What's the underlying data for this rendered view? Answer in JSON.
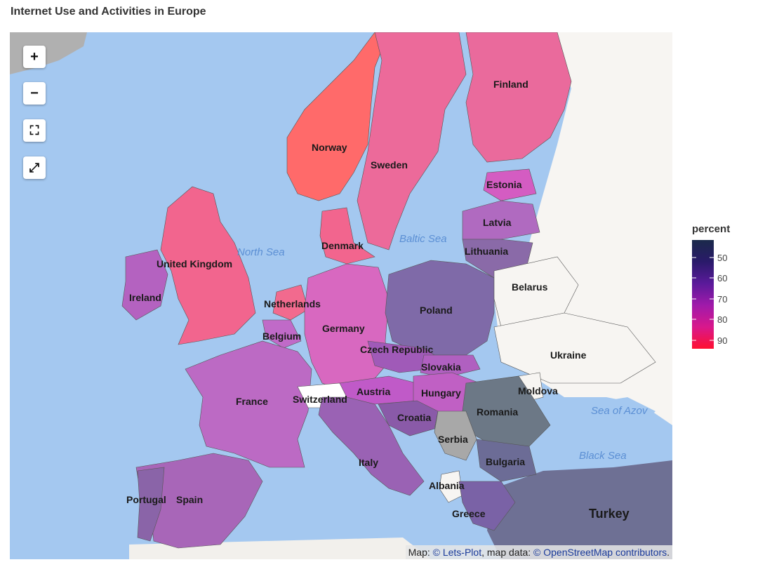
{
  "title": "Internet Use and Activities in Europe",
  "controls": {
    "zoom_in": "+",
    "zoom_out": "−",
    "fullscreen": "⛶",
    "reset": "⤢"
  },
  "attribution": {
    "prefix": "Map: ",
    "lets_plot": "© Lets-Plot",
    "middle": ", map data: ",
    "osm": "© OpenStreetMap contributors",
    "suffix": "."
  },
  "legend": {
    "title": "percent",
    "ticks": [
      "50",
      "60",
      "70",
      "80",
      "90"
    ],
    "colors": [
      "#1a2a4a",
      "#2a1a6a",
      "#5a1a9a",
      "#a01aaa",
      "#d8188c",
      "#ff1030"
    ]
  },
  "seas": [
    "North Sea",
    "Baltic Sea",
    "Sea of Azov",
    "Black Sea"
  ],
  "countries": [
    {
      "name": "Norway",
      "color": "#ff6a6a"
    },
    {
      "name": "Sweden",
      "color": "#ec6a9a"
    },
    {
      "name": "Finland",
      "color": "#ea6a9c"
    },
    {
      "name": "Estonia",
      "color": "#d45cc2"
    },
    {
      "name": "Latvia",
      "color": "#b06ac0"
    },
    {
      "name": "Lithuania",
      "color": "#8a6aa8"
    },
    {
      "name": "Denmark",
      "color": "#f2658e"
    },
    {
      "name": "United Kingdom",
      "color": "#f2658e"
    },
    {
      "name": "Ireland",
      "color": "#b462c0"
    },
    {
      "name": "Netherlands",
      "color": "#f26a8e"
    },
    {
      "name": "Belgium",
      "color": "#c06ac8"
    },
    {
      "name": "Germany",
      "color": "#d868c0"
    },
    {
      "name": "Poland",
      "color": "#7f6aa8"
    },
    {
      "name": "Belarus",
      "color": "#f7f5f2"
    },
    {
      "name": "Ukraine",
      "color": "#f7f5f2"
    },
    {
      "name": "Czech Republic",
      "color": "#a05ab8"
    },
    {
      "name": "Slovakia",
      "color": "#b060c0"
    },
    {
      "name": "France",
      "color": "#bc6ac4"
    },
    {
      "name": "Switzerland",
      "color": "#ffffff"
    },
    {
      "name": "Austria",
      "color": "#c05ac8"
    },
    {
      "name": "Hungary",
      "color": "#c060c4"
    },
    {
      "name": "Moldova",
      "color": "#f7f5f2"
    },
    {
      "name": "Romania",
      "color": "#6c7886"
    },
    {
      "name": "Croatia",
      "color": "#8a5aa8"
    },
    {
      "name": "Serbia",
      "color": "#a8a8a8"
    },
    {
      "name": "Italy",
      "color": "#9a62b4"
    },
    {
      "name": "Bulgaria",
      "color": "#6c6c96"
    },
    {
      "name": "Albania",
      "color": "#f7f5f2"
    },
    {
      "name": "Greece",
      "color": "#7a62a6"
    },
    {
      "name": "Turkey",
      "color": "#6e7094"
    },
    {
      "name": "Portugal",
      "color": "#8a64a8"
    },
    {
      "name": "Spain",
      "color": "#a866b8"
    }
  ]
}
